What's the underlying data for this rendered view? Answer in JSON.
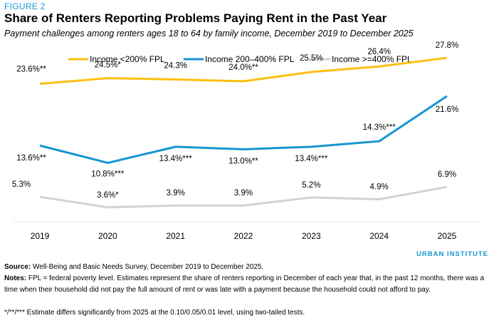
{
  "figure_label": "FIGURE 2",
  "title": "Share of Renters Reporting Problems Paying Rent in the Past Year",
  "subtitle": "Payment challenges among renters ages 18 to 64 by family income, December 2019 to December 2025",
  "brand": "URBAN INSTITUTE",
  "footer": {
    "source_label": "Source:",
    "source_text": "Well-Being and Basic Needs Survey, December 2019 to December 2025.",
    "notes_label": "Notes:",
    "notes_text": "FPL = federal poverty level. Estimates represent the share of renters reporting in December of each year that, in the past 12 months, there was a time when their household did not pay the full amount of rent or was late with a payment because the household could not afford to pay.",
    "significance_text": "*/**/*** Estimate differs significantly from 2025 at the 0.10/0.05/0.01 level, using two-tailed tests."
  },
  "chart_data": {
    "type": "line",
    "title": "",
    "xlabel": "",
    "ylabel": "",
    "x": [
      "2019",
      "2020",
      "2021",
      "2022",
      "2023",
      "2024",
      "2025"
    ],
    "ylim": [
      0,
      30
    ],
    "grid": false,
    "legend_position": "top",
    "series": [
      {
        "name": "Income <200% FPL",
        "color": "#fdbf11",
        "values": [
          23.6,
          24.5,
          24.3,
          24.0,
          25.5,
          26.4,
          27.8
        ],
        "labels": [
          "23.6%**",
          "24.5%*",
          "24.3%",
          "24.0%**",
          "25.5%",
          "26.4%",
          "27.8%"
        ]
      },
      {
        "name": "Income 200–400% FPL",
        "color": "#1696d2",
        "values": [
          13.6,
          10.8,
          13.4,
          13.0,
          13.4,
          14.3,
          21.6
        ],
        "labels": [
          "13.6%**",
          "10.8%***",
          "13.4%***",
          "13.0%**",
          "13.4%***",
          "14.3%***",
          "21.6%"
        ]
      },
      {
        "name": "Income >=400% FPL",
        "color": "#d2d2d2",
        "values": [
          5.3,
          3.6,
          3.9,
          3.9,
          5.2,
          4.9,
          6.9
        ],
        "labels": [
          "5.3%",
          "3.6%*",
          "3.9%",
          "3.9%",
          "5.2%",
          "4.9%",
          "6.9%"
        ]
      }
    ]
  }
}
